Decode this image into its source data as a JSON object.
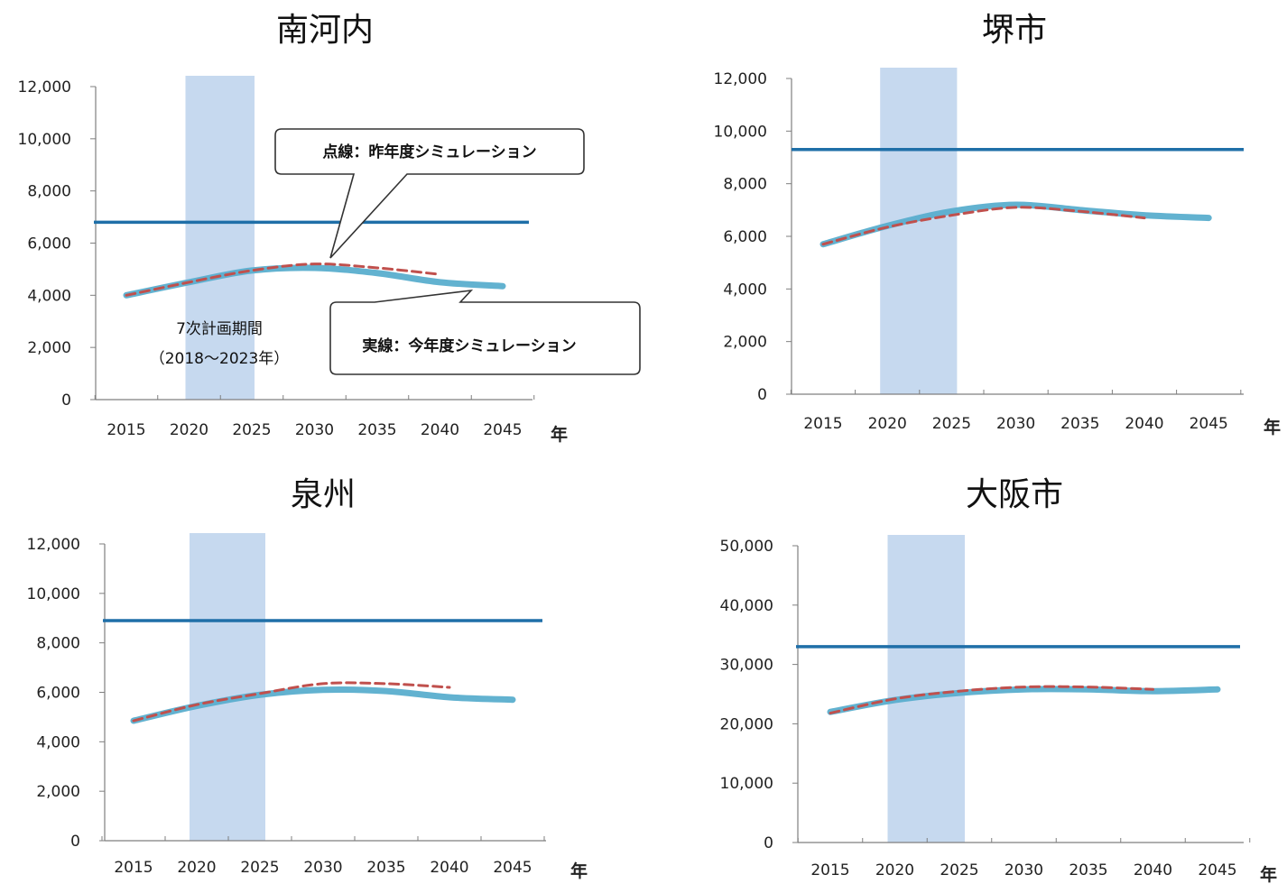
{
  "chart_data": [
    {
      "type": "line",
      "title": "南河内",
      "x_unit": "年",
      "x_ticks": [
        "2015",
        "2020",
        "2025",
        "2030",
        "2035",
        "2040",
        "2045"
      ],
      "y_ticks": [
        "0",
        "2,000",
        "4,000",
        "6,000",
        "8,000",
        "10,000",
        "12,000"
      ],
      "ylim": [
        0,
        12000
      ],
      "shaded_period": [
        2020,
        2025
      ],
      "horizontal_line": 6800,
      "series": [
        {
          "style": "solid",
          "color": "#5aaecd",
          "x": [
            2015,
            2020,
            2025,
            2030,
            2035,
            2040,
            2045
          ],
          "values": [
            4000,
            4500,
            4950,
            5050,
            4850,
            4500,
            4350
          ]
        },
        {
          "style": "dashed",
          "color": "#c0504d",
          "x": [
            2015,
            2020,
            2025,
            2030,
            2035,
            2040
          ],
          "values": [
            4000,
            4500,
            4950,
            5200,
            5050,
            4800
          ]
        },
        {
          "style": "solid",
          "color": "#1f6fa8",
          "x": [
            2015,
            2045
          ],
          "values": [
            6800,
            6800
          ]
        }
      ],
      "annotations": {
        "period_line1": "7次計画期間",
        "period_line2": "（2018～2023年）",
        "callout_dashed": "点線：昨年度シミュレーション",
        "callout_solid": "実線：今年度シミュレーション"
      }
    },
    {
      "type": "line",
      "title": "堺市",
      "x_unit": "年",
      "x_ticks": [
        "2015",
        "2020",
        "2025",
        "2030",
        "2035",
        "2040",
        "2045"
      ],
      "y_ticks": [
        "0",
        "2,000",
        "4,000",
        "6,000",
        "8,000",
        "10,000",
        "12,000"
      ],
      "ylim": [
        0,
        12000
      ],
      "shaded_period": [
        2020,
        2025
      ],
      "horizontal_line": 9300,
      "series": [
        {
          "style": "solid",
          "color": "#5aaecd",
          "x": [
            2015,
            2020,
            2025,
            2030,
            2035,
            2040,
            2045
          ],
          "values": [
            5700,
            6400,
            6950,
            7200,
            7000,
            6800,
            6700
          ]
        },
        {
          "style": "dashed",
          "color": "#c0504d",
          "x": [
            2015,
            2020,
            2025,
            2030,
            2035,
            2040
          ],
          "values": [
            5700,
            6350,
            6800,
            7100,
            6950,
            6700
          ]
        },
        {
          "style": "solid",
          "color": "#1f6fa8",
          "x": [
            2015,
            2045
          ],
          "values": [
            9300,
            9300
          ]
        }
      ]
    },
    {
      "type": "line",
      "title": "泉州",
      "x_unit": "年",
      "x_ticks": [
        "2015",
        "2020",
        "2025",
        "2030",
        "2035",
        "2040",
        "2045"
      ],
      "y_ticks": [
        "0",
        "2,000",
        "4,000",
        "6,000",
        "8,000",
        "10,000",
        "12,000"
      ],
      "ylim": [
        0,
        12000
      ],
      "shaded_period": [
        2020,
        2025
      ],
      "horizontal_line": 8900,
      "series": [
        {
          "style": "solid",
          "color": "#5aaecd",
          "x": [
            2015,
            2020,
            2025,
            2030,
            2035,
            2040,
            2045
          ],
          "values": [
            4850,
            5450,
            5900,
            6100,
            6050,
            5800,
            5700
          ]
        },
        {
          "style": "dashed",
          "color": "#c0504d",
          "x": [
            2015,
            2020,
            2025,
            2030,
            2035,
            2040
          ],
          "values": [
            4850,
            5500,
            5950,
            6350,
            6350,
            6200
          ]
        },
        {
          "style": "solid",
          "color": "#1f6fa8",
          "x": [
            2015,
            2045
          ],
          "values": [
            8900,
            8900
          ]
        }
      ]
    },
    {
      "type": "line",
      "title": "大阪市",
      "x_unit": "年",
      "x_ticks": [
        "2015",
        "2020",
        "2025",
        "2030",
        "2035",
        "2040",
        "2045"
      ],
      "y_ticks": [
        "0",
        "10,000",
        "20,000",
        "30,000",
        "40,000",
        "50,000"
      ],
      "ylim": [
        0,
        50000
      ],
      "shaded_period": [
        2020,
        2025
      ],
      "horizontal_line": 33000,
      "series": [
        {
          "style": "solid",
          "color": "#5aaecd",
          "x": [
            2015,
            2020,
            2025,
            2030,
            2035,
            2040,
            2045
          ],
          "values": [
            22000,
            24000,
            25200,
            25800,
            25800,
            25500,
            25800
          ]
        },
        {
          "style": "dashed",
          "color": "#c0504d",
          "x": [
            2015,
            2020,
            2025,
            2030,
            2035,
            2040
          ],
          "values": [
            21800,
            24200,
            25500,
            26200,
            26200,
            25800
          ]
        },
        {
          "style": "solid",
          "color": "#1f6fa8",
          "x": [
            2015,
            2045
          ],
          "values": [
            33000,
            33000
          ]
        }
      ]
    }
  ]
}
